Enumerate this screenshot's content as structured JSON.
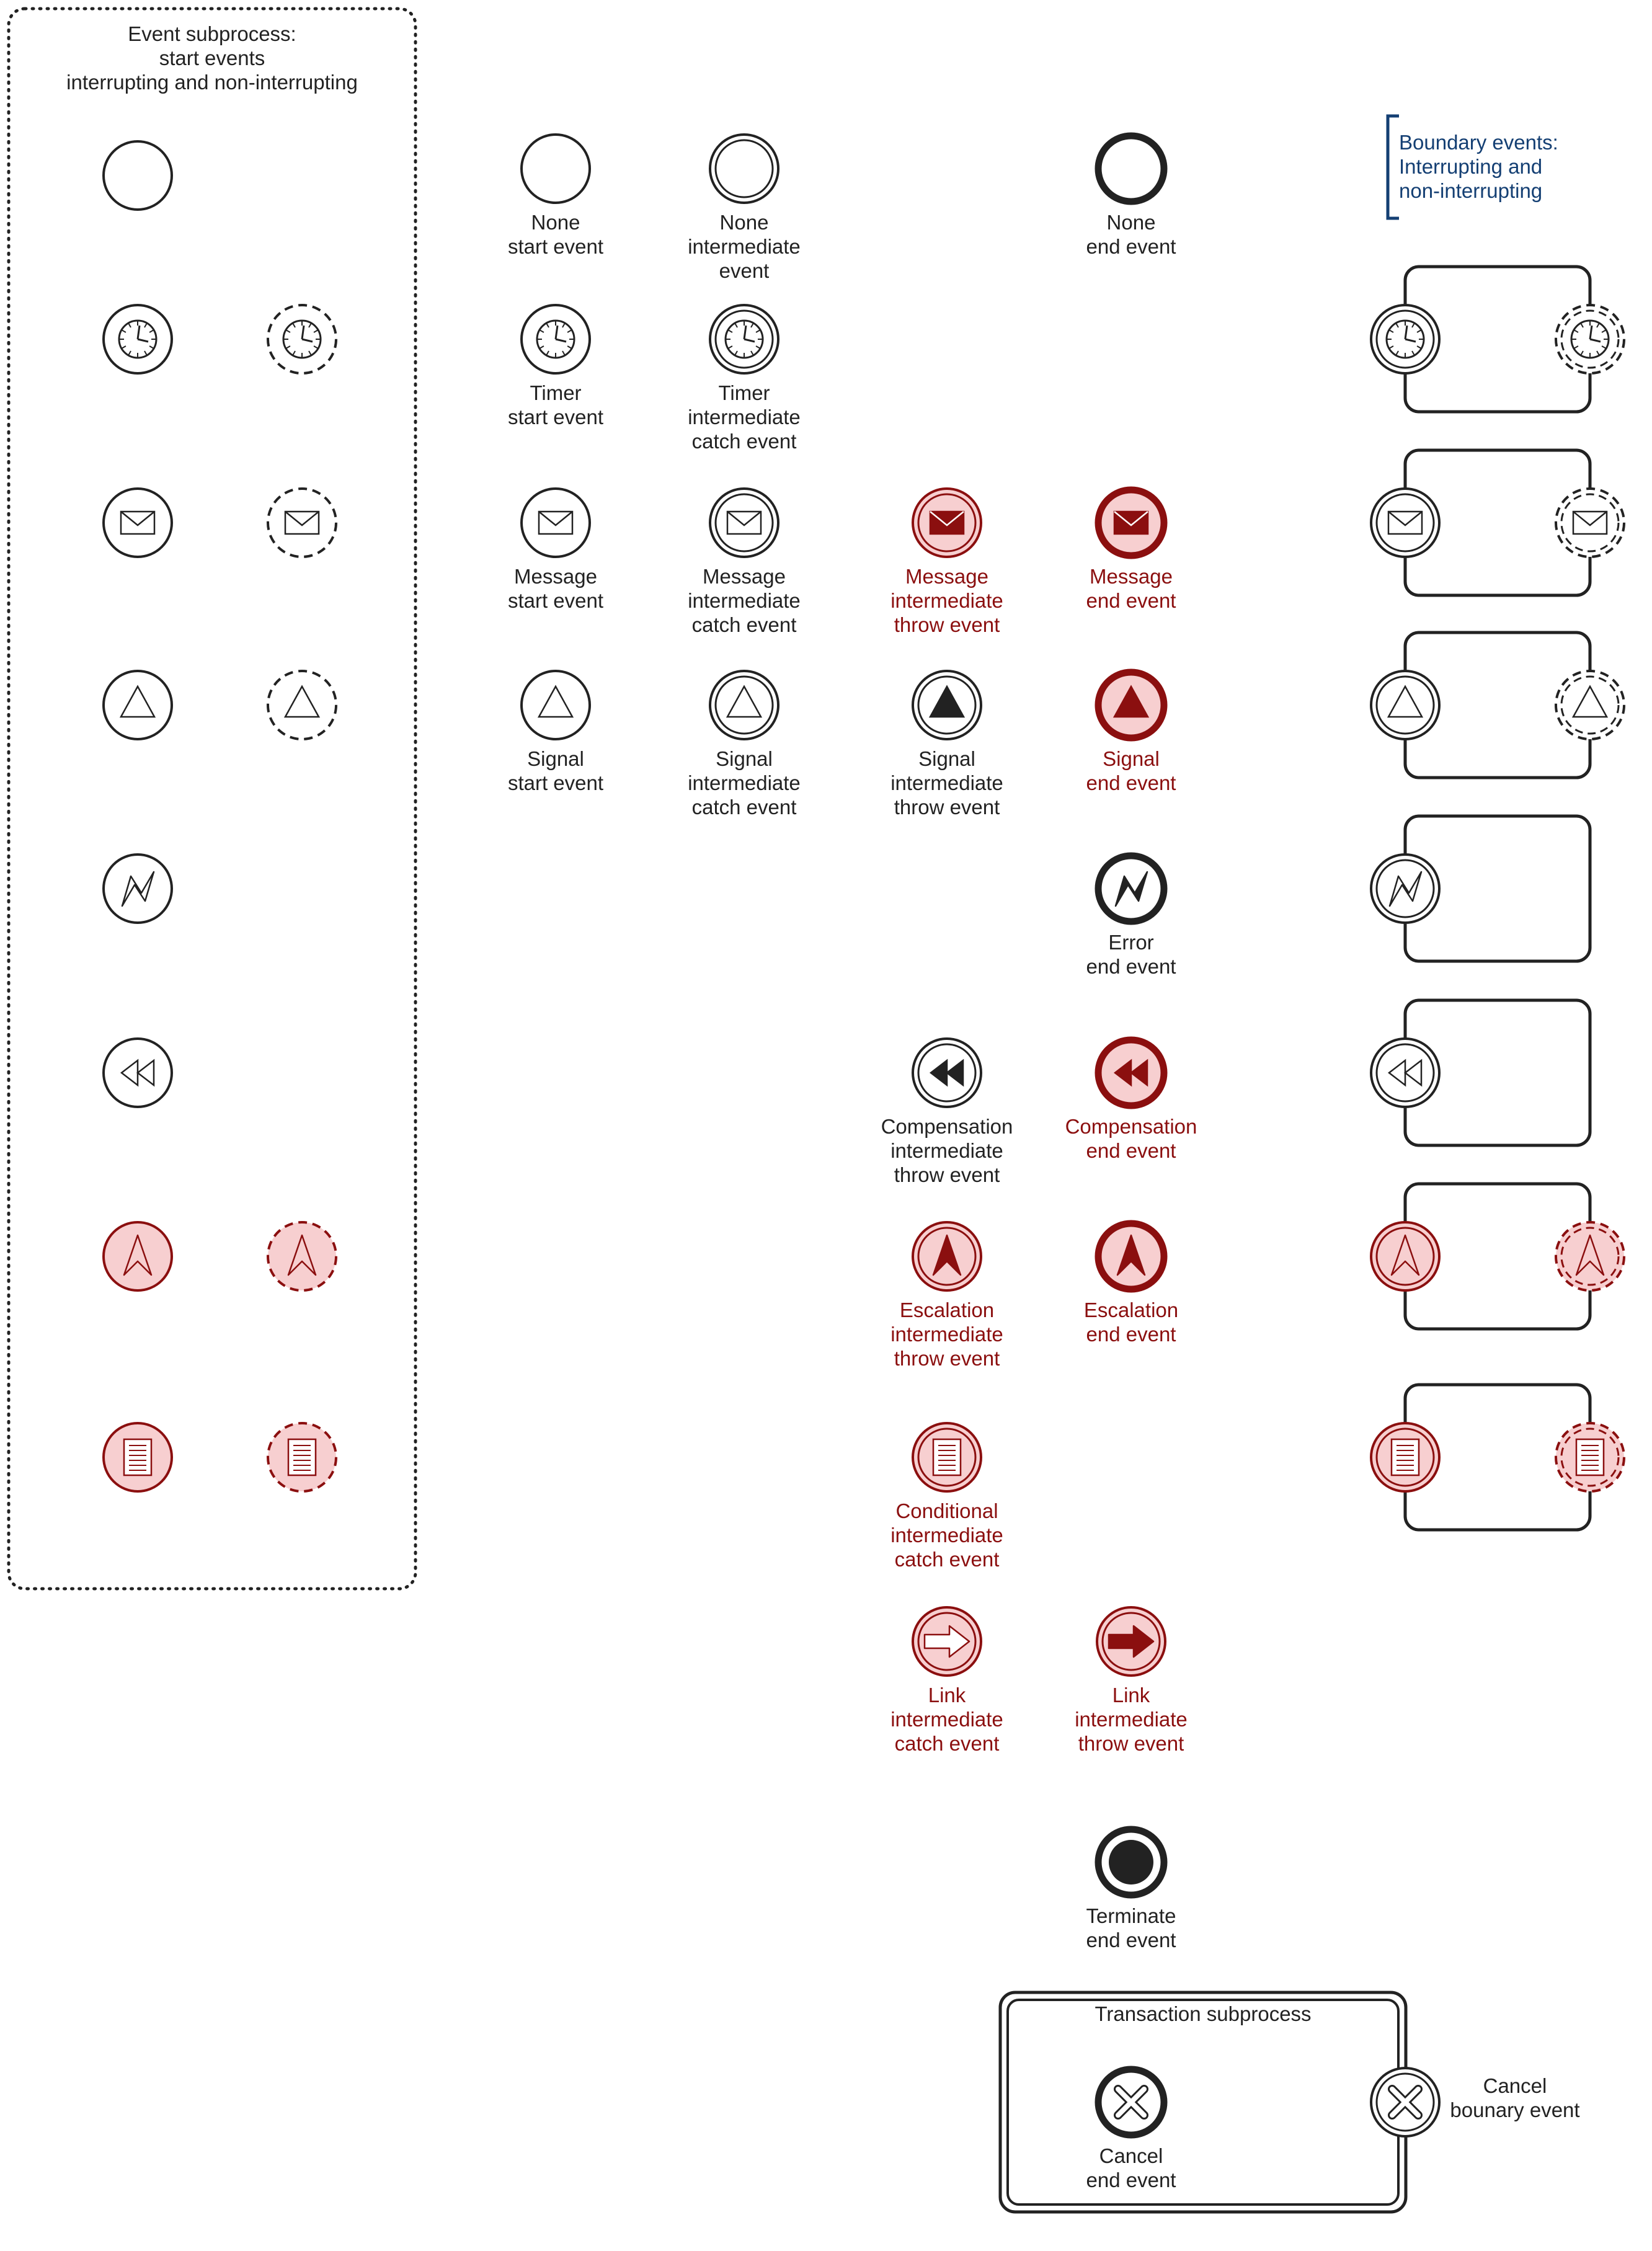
{
  "colors": {
    "ink": "#222222",
    "red": "#8b0f0f",
    "redFill": "#f7cfd0",
    "navy": "#143f73"
  },
  "eventSubprocess": {
    "title": [
      "Event subprocess:",
      "start events",
      "interrupting and non-interrupting"
    ]
  },
  "boundaryTitle": [
    "Boundary events:",
    "Interrupting and",
    "non-interrupting"
  ],
  "transaction": {
    "title": "Transaction subprocess",
    "cancelEnd": [
      "Cancel",
      "end event"
    ],
    "cancelBoundary": [
      "Cancel",
      "bounary event"
    ]
  },
  "labels": {
    "noneStart": [
      "None",
      "start event"
    ],
    "noneIntermediate": [
      "None",
      "intermediate",
      "event"
    ],
    "noneEnd": [
      "None",
      "end event"
    ],
    "timerStart": [
      "Timer",
      "start event"
    ],
    "timerIntermediate": [
      "Timer",
      "intermediate",
      "catch event"
    ],
    "messageStart": [
      "Message",
      "start event"
    ],
    "messageCatch": [
      "Message",
      "intermediate",
      "catch event"
    ],
    "messageThrow": [
      "Message",
      "intermediate",
      "throw event"
    ],
    "messageEnd": [
      "Message",
      "end event"
    ],
    "signalStart": [
      "Signal",
      "start event"
    ],
    "signalCatch": [
      "Signal",
      "intermediate",
      "catch event"
    ],
    "signalThrow": [
      "Signal",
      "intermediate",
      "throw event"
    ],
    "signalEnd": [
      "Signal",
      "end event"
    ],
    "errorEnd": [
      "Error",
      "end event"
    ],
    "compThrow": [
      "Compensation",
      "intermediate",
      "throw event"
    ],
    "compEnd": [
      "Compensation",
      "end event"
    ],
    "escThrow": [
      "Escalation",
      "intermediate",
      "throw event"
    ],
    "escEnd": [
      "Escalation",
      "end event"
    ],
    "condCatch": [
      "Conditional",
      "intermediate",
      "catch event"
    ],
    "linkCatch": [
      "Link",
      "intermediate",
      "catch event"
    ],
    "linkThrow": [
      "Link",
      "intermediate",
      "throw event"
    ],
    "terminateEnd": [
      "Terminate",
      "end event"
    ]
  }
}
